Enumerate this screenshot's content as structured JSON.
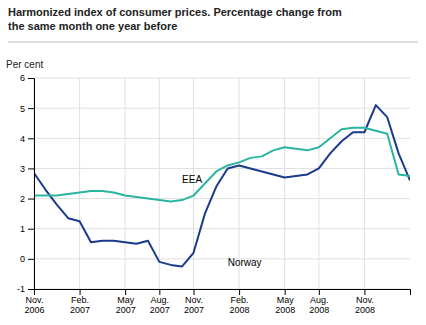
{
  "chart_data": {
    "type": "line",
    "title": "Harmonized index of consumer prices. Percentage change from\nthe same month one year before",
    "ylabel": "Per cent",
    "categories": [
      "Nov.\n2006",
      null,
      null,
      null,
      "Feb.\n2007",
      null,
      null,
      null,
      "May\n2007",
      null,
      null,
      "Aug.\n2007",
      null,
      null,
      "Nov.\n2007",
      null,
      null,
      null,
      "Feb.\n2008",
      null,
      null,
      null,
      "May\n2008",
      null,
      null,
      "Aug.\n2008",
      null,
      null,
      null,
      "Nov.\n2008",
      null,
      null,
      null,
      null
    ],
    "series": [
      {
        "color": "#1a3a8c",
        "values": [
          2.85,
          2.3,
          1.8,
          1.35,
          1.25,
          0.55,
          0.6,
          0.6,
          0.55,
          0.5,
          0.6,
          -0.1,
          -0.2,
          -0.25,
          0.2,
          1.5,
          2.4,
          3.0,
          3.1,
          3.0,
          2.9,
          2.8,
          2.7,
          2.75,
          2.8,
          3.0,
          3.5,
          3.9,
          4.2,
          4.2,
          5.1,
          4.7,
          3.5,
          2.6
        ]
      },
      {
        "color": "#2ab5a0",
        "values": [
          2.1,
          2.1,
          2.1,
          2.15,
          2.2,
          2.25,
          2.25,
          2.2,
          2.1,
          2.05,
          2.0,
          1.95,
          1.9,
          1.95,
          2.1,
          2.5,
          2.9,
          3.1,
          3.2,
          3.35,
          3.4,
          3.6,
          3.7,
          3.65,
          3.6,
          3.7,
          4.0,
          4.3,
          4.35,
          4.35,
          4.25,
          4.15,
          2.8,
          2.75
        ]
      }
    ],
    "annotations": [
      {
        "text": "Norway",
        "x": 17,
        "y": -0.15
      },
      {
        "text": "EEA",
        "x": 13,
        "y": 2.6
      }
    ],
    "ylim": [
      -1,
      6
    ],
    "yticks": [
      -1,
      0,
      1,
      2,
      3,
      4,
      5,
      6
    ],
    "grid": true
  }
}
